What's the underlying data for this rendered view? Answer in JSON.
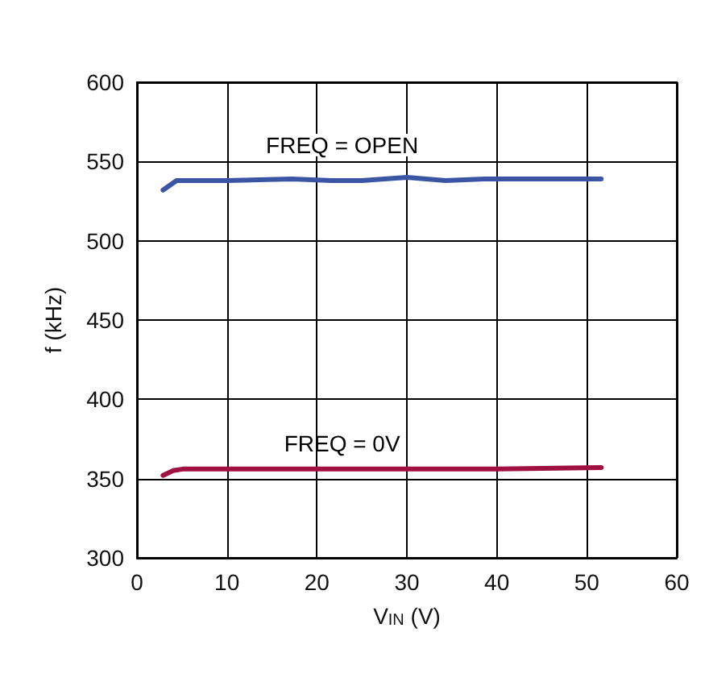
{
  "chart_data": {
    "type": "line",
    "xlabel": "V$_{IN}$ (V)",
    "ylabel": "f (kHz)",
    "xlim": [
      0,
      60
    ],
    "xticks": [
      0,
      10,
      20,
      30,
      40,
      50,
      60
    ],
    "ylim": [
      300,
      600
    ],
    "yticks": [
      300,
      350,
      400,
      450,
      500,
      550,
      600
    ],
    "grid": true,
    "marker": "none",
    "line_style": "solid",
    "series": [
      {
        "color": "#3a55a4",
        "x": [
          2.9,
          4.4,
          10,
          17.2,
          21.6,
          25,
          30,
          34.3,
          38.6,
          47.2,
          51.6
        ],
        "values": [
          532,
          538,
          538,
          539,
          538,
          538,
          540,
          538,
          539,
          539,
          539
        ]
      },
      {
        "color": "#a01040",
        "x": [
          2.9,
          4,
          5.1,
          10,
          20,
          30,
          40,
          51.6
        ],
        "values": [
          352,
          355,
          356,
          356,
          356,
          356,
          356,
          357
        ]
      }
    ],
    "annotations": [
      "FREQ = OPEN",
      "FREQ = 0V"
    ]
  }
}
